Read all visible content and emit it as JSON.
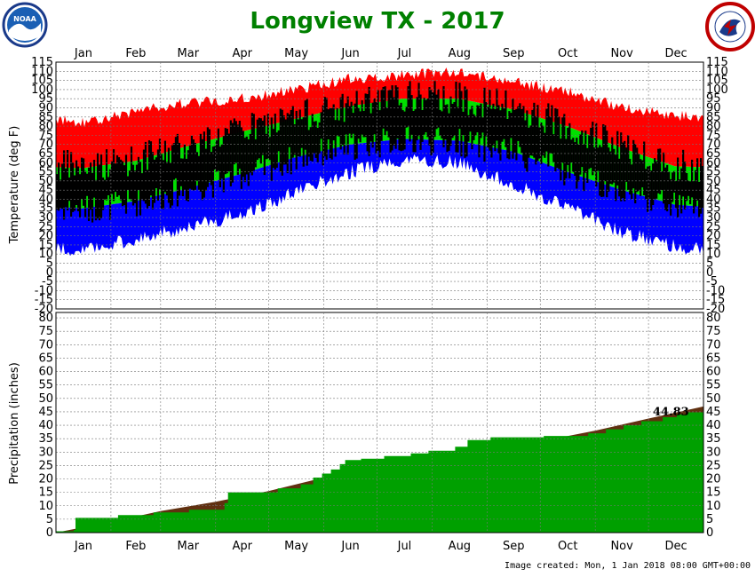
{
  "chart_data": {
    "title": "Longview TX - 2017",
    "created": "Image created: Mon, 1 Jan 2018 08:00 GMT+00:00",
    "months": [
      "Jan",
      "Feb",
      "Mar",
      "Apr",
      "May",
      "Jun",
      "Jul",
      "Aug",
      "Sep",
      "Oct",
      "Nov",
      "Dec"
    ],
    "temperature": {
      "type": "bar",
      "ylabel": "Temperature (deg F)",
      "ylim": [
        -20,
        115
      ],
      "ticks": [
        115,
        110,
        105,
        100,
        95,
        90,
        85,
        80,
        75,
        70,
        65,
        60,
        55,
        50,
        45,
        40,
        35,
        30,
        25,
        20,
        15,
        10,
        5,
        0,
        -5,
        -10,
        -15,
        -20
      ],
      "colors": {
        "record": "#ff0000",
        "actual": "#000000",
        "normal": "#00e000",
        "record_low": "#0000ff"
      },
      "monthly": {
        "record_high": [
          82,
          88,
          93,
          95,
          100,
          106,
          108,
          110,
          104,
          99,
          90,
          86
        ],
        "normal_high": [
          57,
          61,
          69,
          77,
          84,
          91,
          95,
          95,
          89,
          80,
          68,
          58
        ],
        "normal_low": [
          35,
          39,
          46,
          54,
          63,
          70,
          73,
          72,
          66,
          55,
          45,
          37
        ],
        "record_low": [
          12,
          18,
          25,
          32,
          44,
          55,
          62,
          60,
          48,
          36,
          22,
          14
        ]
      }
    },
    "precipitation": {
      "type": "area",
      "ylabel": "Precipitation (inches)",
      "ylim": [
        0,
        82
      ],
      "ticks": [
        80,
        75,
        70,
        65,
        60,
        55,
        50,
        45,
        40,
        35,
        30,
        25,
        20,
        15,
        10,
        5,
        0
      ],
      "colors": {
        "actual": "#00a000",
        "normal": "#603010"
      },
      "total_label": "44.83",
      "normal_cum_month_end": [
        4.0,
        8.0,
        11.5,
        15.5,
        20.5,
        24.5,
        27.5,
        30.5,
        34.0,
        38.0,
        42.5,
        47.0
      ],
      "actual_steps": [
        [
          0,
          0.5
        ],
        [
          10,
          1.0
        ],
        [
          11,
          5.5
        ],
        [
          35,
          6.5
        ],
        [
          55,
          7.5
        ],
        [
          75,
          8.5
        ],
        [
          95,
          11.0
        ],
        [
          97,
          15.0
        ],
        [
          125,
          16.5
        ],
        [
          138,
          18.0
        ],
        [
          145,
          20.5
        ],
        [
          150,
          22.0
        ],
        [
          155,
          23.5
        ],
        [
          160,
          25.5
        ],
        [
          163,
          27.0
        ],
        [
          172,
          27.5
        ],
        [
          185,
          28.5
        ],
        [
          200,
          29.5
        ],
        [
          210,
          30.5
        ],
        [
          225,
          32.0
        ],
        [
          232,
          34.5
        ],
        [
          245,
          35.5
        ],
        [
          275,
          36.0
        ],
        [
          300,
          37.0
        ],
        [
          310,
          38.5
        ],
        [
          320,
          40.0
        ],
        [
          330,
          41.5
        ],
        [
          342,
          43.0
        ],
        [
          350,
          44.0
        ],
        [
          356,
          44.8
        ],
        [
          365,
          44.83
        ]
      ]
    }
  }
}
